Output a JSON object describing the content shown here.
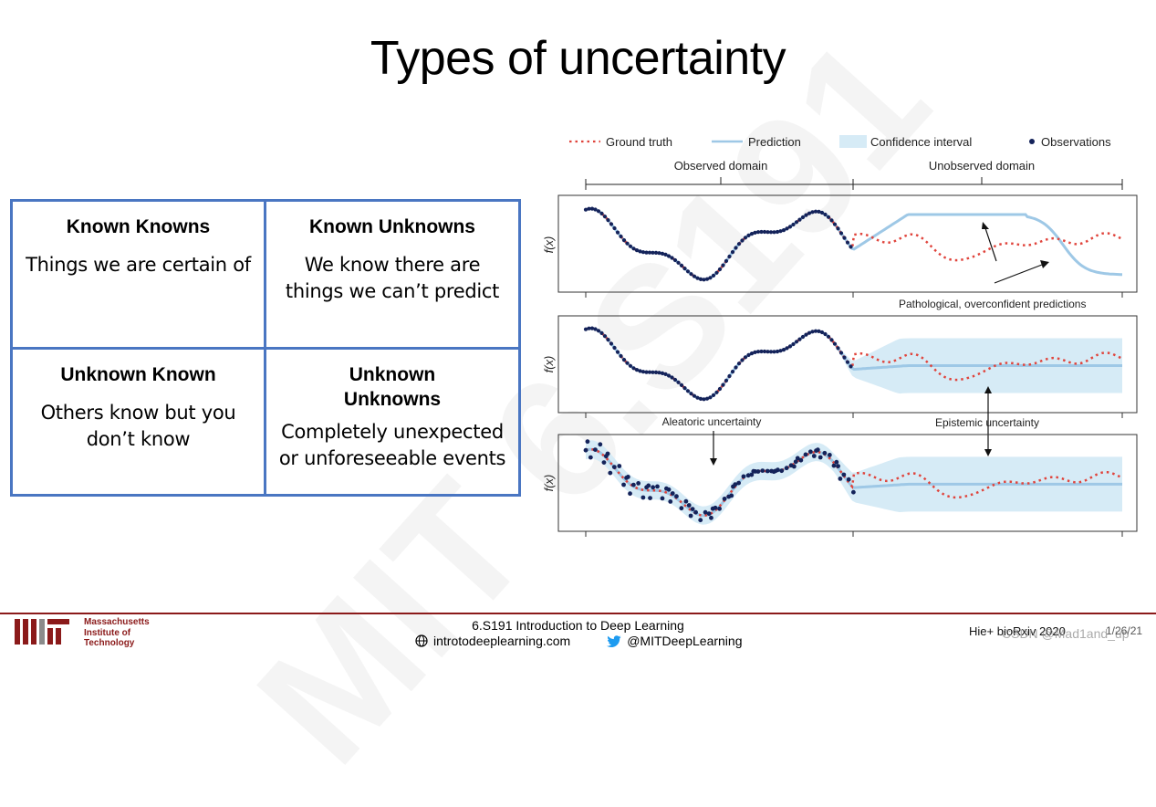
{
  "title": "Types of uncertainty",
  "watermark": "MIT 6.S191",
  "quadrants": [
    {
      "heading": "Known Knowns",
      "text_lines": [
        "Things we are certain of"
      ]
    },
    {
      "heading": "Known Unknowns",
      "text_lines": [
        "We know there are",
        "things we can’t predict"
      ]
    },
    {
      "heading": "Unknown Known",
      "text_lines": [
        "Others know but you",
        "don’t know"
      ]
    },
    {
      "heading_lines": [
        "Unknown",
        "Unknowns"
      ],
      "text_lines": [
        "Completely unexpected",
        "or unforeseeable events"
      ]
    }
  ],
  "figure": {
    "legend": {
      "ground_truth": "Ground truth",
      "prediction": "Prediction",
      "confidence_interval": "Confidence interval",
      "observations": "Observations"
    },
    "domain_labels": {
      "observed": "Observed domain",
      "unobserved": "Unobserved domain"
    },
    "ylabel": "f(x)",
    "annotations": {
      "pathological": "Pathological, overconfident predictions",
      "aleatoric": "Aleatoric uncertainty",
      "epistemic": "Epistemic uncertainty"
    },
    "colors": {
      "ground_truth": "#e0443c",
      "prediction": "#9ec8e6",
      "confidence": "#d6ebf6",
      "observations": "#14235a"
    }
  },
  "footer": {
    "institution_lines": [
      "Massachusetts",
      "Institute of",
      "Technology"
    ],
    "course": "6.S191 Introduction to Deep Learning",
    "website": "introtodeeplearning.com",
    "twitter": "@MITDeepLearning",
    "citation": "Hie+ bioRxiv 2020",
    "csdn": "CSDN @Mad1and_up",
    "page": "1/26/21"
  }
}
